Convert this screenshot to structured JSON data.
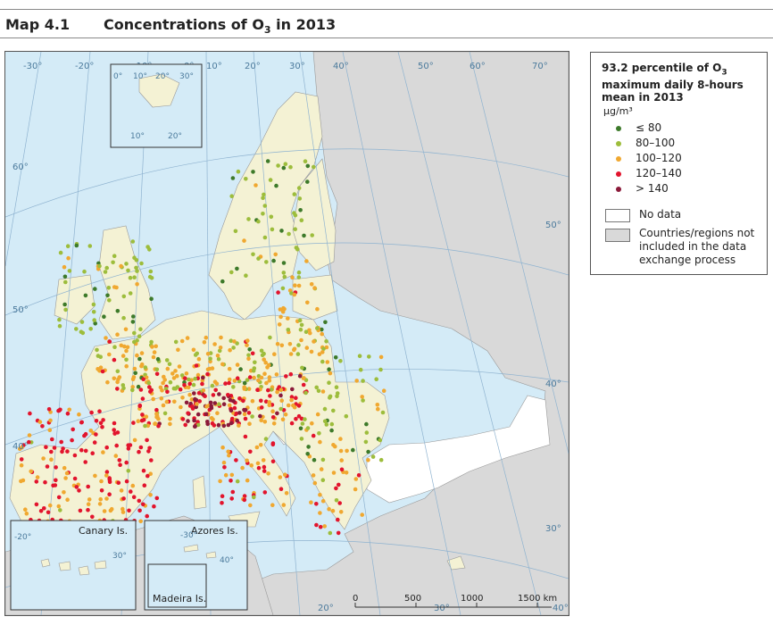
{
  "header": {
    "map_number": "Map 4.1",
    "title_prefix": "Concentrations of O",
    "title_sub": "3",
    "title_suffix": " in 2013"
  },
  "legend": {
    "title_line1": "93.2 percentile of O",
    "title_line1_sub": "3",
    "title_line2": "maximum daily 8-hours",
    "title_line3": "mean in 2013",
    "unit": "µg/m³",
    "classes": [
      {
        "label": "≤ 80",
        "color": "#3d7a2a"
      },
      {
        "label": "80–100",
        "color": "#9dbd3c"
      },
      {
        "label": "100–120",
        "color": "#f0a830"
      },
      {
        "label": "120–140",
        "color": "#e2142d"
      },
      {
        "label": "> 140",
        "color": "#8b1a3a"
      }
    ],
    "no_data": {
      "label": "No data",
      "color": "#ffffff"
    },
    "not_included": {
      "label_line1": "Countries/regions not",
      "label_line2": "included in the data",
      "label_line3": "exchange process",
      "color": "#d9d9d9"
    }
  },
  "map": {
    "sea_color": "#d4ebf7",
    "land_color": "#f4f2d4",
    "outside_color": "#d9d9d9",
    "graticule": {
      "top": [
        "-30°",
        "-20°",
        "-10°",
        "0°",
        "10°",
        "20°",
        "30°",
        "40°",
        "50°",
        "60°",
        "70°"
      ],
      "left": [
        "60°",
        "50°",
        "40°"
      ],
      "right": [
        "50°",
        "40°",
        "30°"
      ],
      "bottom": [
        "20°",
        "30°",
        "40°"
      ]
    },
    "svalbard_inset": {
      "labels": [
        "0°",
        "10°",
        "20°",
        "30°",
        "10°",
        "20°"
      ]
    },
    "canary_inset": {
      "title": "Canary Is.",
      "labels": [
        "-20°",
        "30°"
      ]
    },
    "azores_inset": {
      "title": "Azores Is.",
      "labels": [
        "-30°",
        "40°"
      ]
    },
    "madeira_inset": {
      "title": "Madeira Is."
    },
    "scalebar": {
      "labels": [
        "0",
        "500",
        "1000",
        "1500 km"
      ]
    }
  }
}
